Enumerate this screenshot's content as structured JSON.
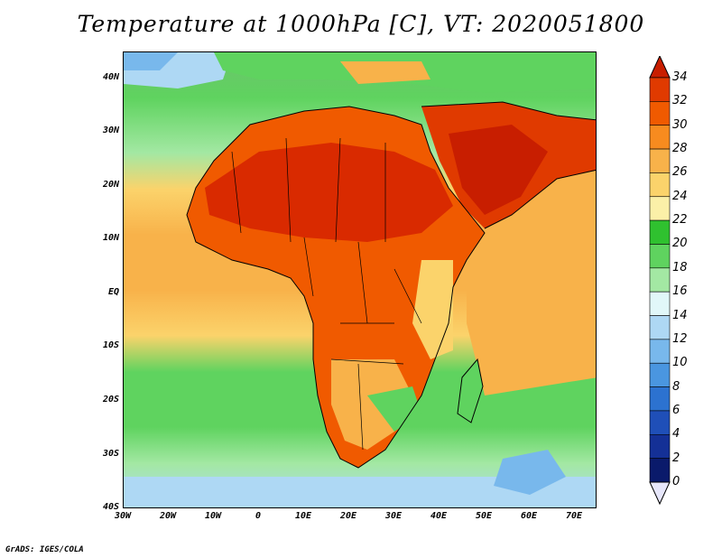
{
  "title": "Temperature at 1000hPa [C], VT: 2020051800",
  "footer": "GrADS: IGES/COLA",
  "map": {
    "region": "Africa and Middle East",
    "lon_range": [
      -30,
      75
    ],
    "lat_range": [
      -40,
      45
    ],
    "lat_ticks": [
      "40N",
      "30N",
      "20N",
      "10N",
      "EQ",
      "10S",
      "20S",
      "30S",
      "40S"
    ],
    "lon_ticks": [
      "30W",
      "20W",
      "10W",
      "0",
      "10E",
      "20E",
      "30E",
      "40E",
      "50E",
      "60E",
      "70E"
    ]
  },
  "colorbar": {
    "labels": [
      "34",
      "32",
      "30",
      "28",
      "26",
      "24",
      "22",
      "20",
      "18",
      "16",
      "14",
      "12",
      "10",
      "8",
      "6",
      "4",
      "2",
      "0"
    ],
    "colors": [
      "#c81e00",
      "#e03a00",
      "#f05a00",
      "#f78b1f",
      "#f8b24a",
      "#fbd36b",
      "#fbf0a8",
      "#2fc12f",
      "#5fd35f",
      "#a3e8a3",
      "#e1f7f9",
      "#aed8f4",
      "#78b8ec",
      "#4a96e0",
      "#2c72d0",
      "#1f4fb8",
      "#143096",
      "#0a1a6b"
    ]
  }
}
